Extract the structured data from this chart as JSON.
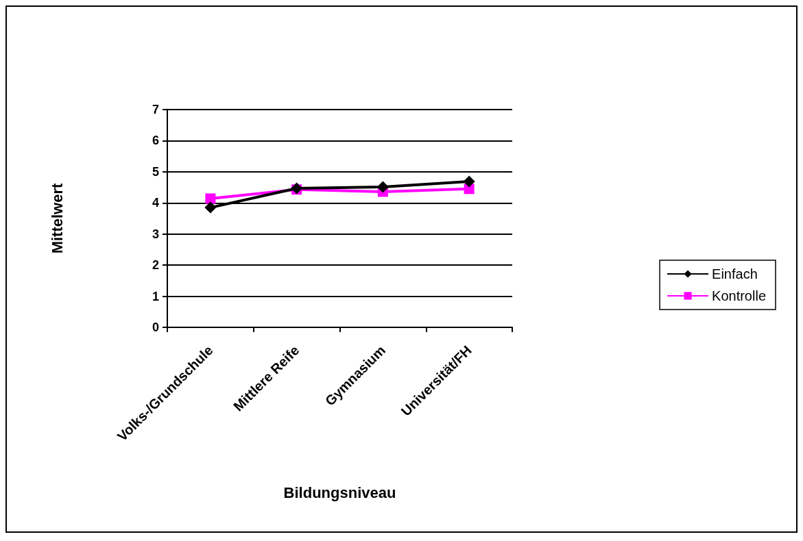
{
  "chart_data": {
    "type": "line",
    "xlabel": "Bildungsniveau",
    "ylabel": "Mittelwert",
    "categories": [
      "Volks-/Grundschule",
      "Mittlere Reife",
      "Gymnasium",
      "Universität/FH"
    ],
    "series": [
      {
        "name": "Einfach",
        "color": "#000000",
        "marker": "diamond",
        "values": [
          3.85,
          4.47,
          4.51,
          4.69
        ]
      },
      {
        "name": "Kontrolle",
        "color": "#ff00ff",
        "marker": "square",
        "values": [
          4.14,
          4.43,
          4.36,
          4.45
        ]
      }
    ],
    "ylim": [
      0,
      7
    ],
    "yticks": [
      0,
      1,
      2,
      3,
      4,
      5,
      6,
      7
    ],
    "grid": "y",
    "legend": "right",
    "line_style": "solid"
  }
}
